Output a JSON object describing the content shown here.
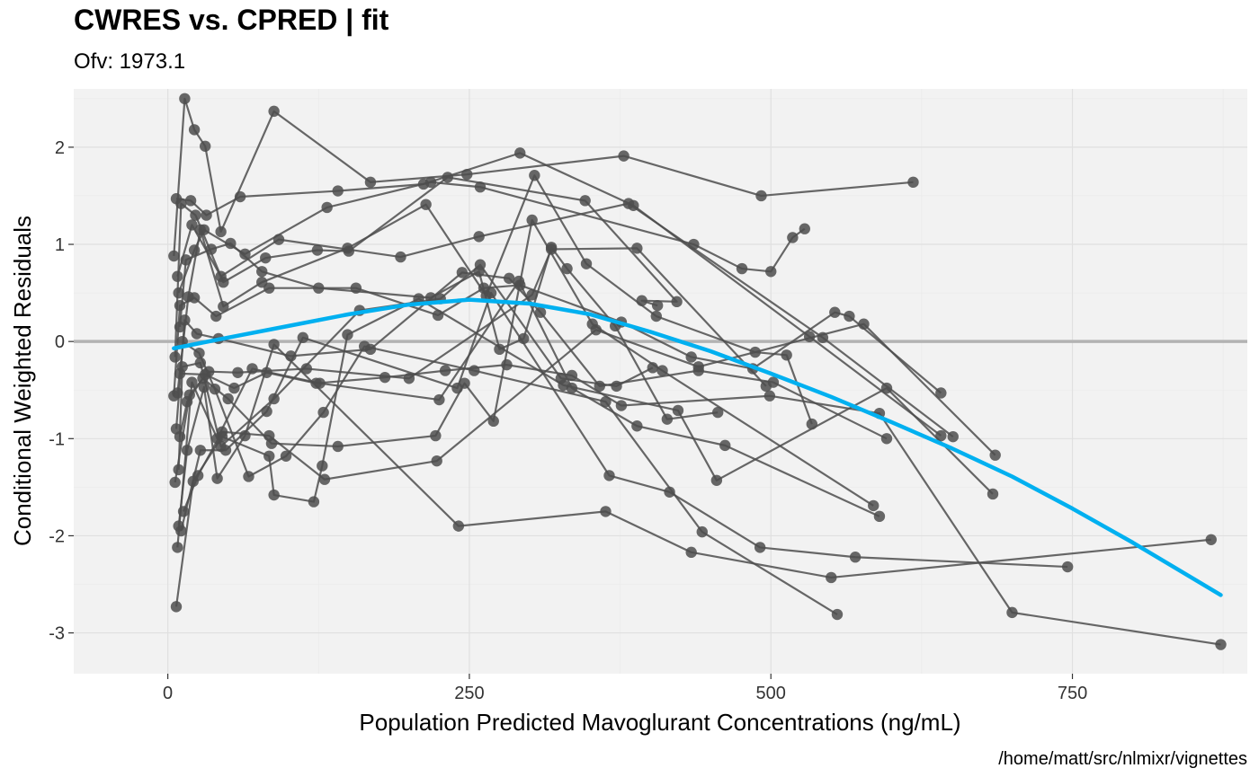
{
  "chart_data": {
    "type": "scatter",
    "title": "CWRES vs. CPRED | fit",
    "subtitle": "Ofv: 1973.1",
    "xlabel": "Population Predicted Mavoglurant Concentrations (ng/mL)",
    "ylabel": "Conditional Weighted Residuals",
    "caption": "/home/matt/src/nlmixr/vignettes",
    "xlim": [
      -78,
      895
    ],
    "ylim": [
      -3.42,
      2.6
    ],
    "xticks": [
      0,
      250,
      500,
      750
    ],
    "yticks": [
      -3,
      -2,
      -1,
      0,
      1,
      2
    ],
    "xtick_labels": [
      "0",
      "250",
      "500",
      "750"
    ],
    "ytick_labels": [
      "-3",
      "-2",
      "-1",
      "0",
      "1",
      "2"
    ],
    "grid": true,
    "legend": "none",
    "reference_line": {
      "y": 0,
      "color": "#b3b3b3"
    },
    "colors": {
      "panel_background": "#f2f2f2",
      "grid": "#e0e0e0",
      "points": "#4d4d4d",
      "lines": "#4d4d4d",
      "smooth": "#00b0f0",
      "reference": "#b3b3b3"
    },
    "individuals": [
      [
        [
          5,
          0.88
        ],
        [
          14,
          2.5
        ],
        [
          22,
          2.18
        ],
        [
          31,
          2.01
        ],
        [
          44,
          1.13
        ],
        [
          88,
          2.37
        ],
        [
          168,
          1.64
        ],
        [
          248,
          1.72
        ],
        [
          378,
          1.91
        ],
        [
          492,
          1.5
        ],
        [
          618,
          1.64
        ]
      ],
      [
        [
          7,
          1.47
        ],
        [
          19,
          1.45
        ],
        [
          32,
          1.3
        ],
        [
          60,
          1.49
        ],
        [
          141,
          1.55
        ],
        [
          212,
          1.62
        ],
        [
          292,
          1.94
        ],
        [
          386,
          1.4
        ],
        [
          532,
          0.05
        ],
        [
          641,
          -0.97
        ]
      ],
      [
        [
          8,
          0.67
        ],
        [
          20,
          1.2
        ],
        [
          44,
          0.67
        ],
        [
          92,
          1.05
        ],
        [
          193,
          0.87
        ],
        [
          258,
          1.08
        ],
        [
          382,
          1.42
        ],
        [
          543,
          0.04
        ],
        [
          651,
          -0.98
        ]
      ],
      [
        [
          9,
          0.5
        ],
        [
          22,
          0.94
        ],
        [
          30,
          1.15
        ],
        [
          64,
          0.9
        ],
        [
          132,
          1.38
        ],
        [
          218,
          1.64
        ],
        [
          259,
          1.59
        ],
        [
          436,
          1.0
        ],
        [
          476,
          0.75
        ],
        [
          500,
          0.72
        ],
        [
          518,
          1.07
        ],
        [
          528,
          1.16
        ]
      ],
      [
        [
          6,
          -0.16
        ],
        [
          11,
          1.42
        ],
        [
          23,
          1.3
        ],
        [
          46,
          0.61
        ],
        [
          81,
          0.86
        ],
        [
          124,
          0.94
        ],
        [
          150,
          0.93
        ],
        [
          232,
          1.69
        ],
        [
          346,
          1.45
        ],
        [
          422,
          0.41
        ],
        [
          393,
          0.42
        ],
        [
          406,
          0.37
        ]
      ],
      [
        [
          10,
          0.15
        ],
        [
          15,
          0.84
        ],
        [
          36,
          0.95
        ],
        [
          52,
          1.01
        ],
        [
          78,
          0.72
        ],
        [
          125,
          0.55
        ],
        [
          218,
          0.45
        ],
        [
          258,
          0.72
        ],
        [
          275,
          -0.08
        ],
        [
          295,
          0.03
        ],
        [
          318,
          0.97
        ],
        [
          331,
          0.75
        ],
        [
          371,
          0.16
        ],
        [
          414,
          -0.8
        ],
        [
          456,
          -0.73
        ]
      ],
      [
        [
          8,
          -0.53
        ],
        [
          17,
          0.46
        ],
        [
          27,
          1.15
        ],
        [
          46,
          0.36
        ],
        [
          78,
          0.61
        ],
        [
          149,
          0.96
        ],
        [
          214,
          1.41
        ],
        [
          264,
          0.47
        ],
        [
          304,
          1.71
        ],
        [
          347,
          0.8
        ],
        [
          405,
          0.26
        ],
        [
          487,
          -0.11
        ],
        [
          513,
          -0.14
        ],
        [
          534,
          -0.85
        ]
      ],
      [
        [
          5,
          -0.56
        ],
        [
          10,
          0.37
        ],
        [
          22,
          0.45
        ],
        [
          40,
          0.26
        ],
        [
          84,
          0.55
        ],
        [
          156,
          0.55
        ],
        [
          224,
          0.27
        ],
        [
          262,
          0.55
        ],
        [
          292,
          0.58
        ],
        [
          376,
          0.2
        ],
        [
          434,
          -0.16
        ],
        [
          485,
          -0.28
        ],
        [
          553,
          0.3
        ],
        [
          565,
          0.26
        ],
        [
          641,
          -0.53
        ]
      ],
      [
        [
          7,
          -0.9
        ],
        [
          14,
          0.22
        ],
        [
          24,
          0.08
        ],
        [
          42,
          0.03
        ],
        [
          102,
          -0.15
        ],
        [
          168,
          -0.08
        ],
        [
          244,
          0.71
        ],
        [
          283,
          0.65
        ],
        [
          309,
          0.3
        ],
        [
          358,
          -0.46
        ],
        [
          440,
          -0.3
        ],
        [
          502,
          -0.42
        ],
        [
          596,
          -1.0
        ]
      ],
      [
        [
          9,
          -1.32
        ],
        [
          12,
          -0.26
        ],
        [
          27,
          -0.22
        ],
        [
          44,
          -1.08
        ],
        [
          88,
          -0.59
        ],
        [
          159,
          0.32
        ],
        [
          226,
          0.44
        ],
        [
          259,
          0.79
        ],
        [
          326,
          -0.38
        ],
        [
          372,
          -0.46
        ],
        [
          402,
          -0.27
        ]
      ],
      [
        [
          6,
          -1.45
        ],
        [
          18,
          -0.55
        ],
        [
          34,
          -0.31
        ],
        [
          58,
          -0.32
        ],
        [
          115,
          -0.28
        ],
        [
          200,
          -0.38
        ],
        [
          302,
          0.48
        ],
        [
          318,
          0.95
        ],
        [
          389,
          0.96
        ],
        [
          496,
          -0.46
        ]
      ],
      [
        [
          10,
          -0.98
        ],
        [
          16,
          -0.62
        ],
        [
          29,
          -0.38
        ],
        [
          50,
          -0.59
        ],
        [
          86,
          -1.05
        ],
        [
          141,
          -1.08
        ],
        [
          222,
          -0.97
        ],
        [
          246,
          -0.43
        ],
        [
          270,
          -0.82
        ],
        [
          302,
          1.25
        ],
        [
          352,
          0.18
        ],
        [
          410,
          -0.3
        ],
        [
          585,
          -1.69
        ]
      ],
      [
        [
          8,
          -2.12
        ],
        [
          20,
          -0.42
        ],
        [
          41,
          -1.0
        ],
        [
          70,
          -0.28
        ],
        [
          126,
          -0.43
        ],
        [
          225,
          -0.6
        ],
        [
          291,
          0.62
        ],
        [
          335,
          -0.48
        ],
        [
          389,
          -0.87
        ],
        [
          462,
          -1.07
        ],
        [
          590,
          -1.8
        ]
      ],
      [
        [
          13,
          -1.75
        ],
        [
          25,
          -1.38
        ],
        [
          45,
          -0.93
        ],
        [
          84,
          -0.97
        ],
        [
          130,
          -1.42
        ],
        [
          223,
          -1.23
        ],
        [
          355,
          0.12
        ],
        [
          440,
          -0.26
        ],
        [
          577,
          0.18
        ],
        [
          686,
          -1.17
        ]
      ],
      [
        [
          7,
          -2.73
        ],
        [
          21,
          -1.44
        ],
        [
          45,
          -0.98
        ],
        [
          84,
          -1.18
        ],
        [
          88,
          -1.58
        ],
        [
          121,
          -1.65
        ],
        [
          128,
          -1.28
        ],
        [
          149,
          0.07
        ],
        [
          208,
          0.44
        ],
        [
          328,
          -0.45
        ],
        [
          423,
          -0.71
        ],
        [
          455,
          -1.43
        ],
        [
          596,
          -0.48
        ],
        [
          684,
          -1.57
        ]
      ],
      [
        [
          11,
          -1.95
        ],
        [
          27,
          -1.12
        ],
        [
          48,
          -1.12
        ],
        [
          82,
          -0.72
        ],
        [
          112,
          0.04
        ],
        [
          240,
          -0.48
        ],
        [
          268,
          0.5
        ],
        [
          366,
          -1.38
        ],
        [
          416,
          -1.55
        ],
        [
          491,
          -2.12
        ],
        [
          570,
          -2.22
        ],
        [
          746,
          -2.32
        ]
      ],
      [
        [
          9,
          -1.9
        ],
        [
          16,
          -1.12
        ],
        [
          30,
          -0.47
        ],
        [
          41,
          -1.41
        ],
        [
          64,
          -0.97
        ],
        [
          88,
          -0.03
        ],
        [
          241,
          -1.9
        ],
        [
          363,
          -1.75
        ],
        [
          434,
          -2.17
        ],
        [
          550,
          -2.43
        ],
        [
          865,
          -2.04
        ]
      ],
      [
        [
          12,
          0.0
        ],
        [
          26,
          -0.12
        ],
        [
          39,
          -0.49
        ],
        [
          67,
          -1.39
        ],
        [
          98,
          -1.18
        ],
        [
          129,
          -0.73
        ],
        [
          163,
          -0.05
        ],
        [
          254,
          -0.3
        ],
        [
          363,
          -0.62
        ],
        [
          443,
          -1.96
        ],
        [
          555,
          -2.81
        ]
      ],
      [
        [
          10,
          -0.33
        ],
        [
          31,
          -0.34
        ],
        [
          55,
          -0.48
        ],
        [
          82,
          -0.32
        ],
        [
          123,
          -0.43
        ],
        [
          180,
          -0.37
        ],
        [
          230,
          -0.3
        ],
        [
          281,
          -0.24
        ],
        [
          335,
          -0.35
        ],
        [
          376,
          -0.66
        ],
        [
          499,
          -0.56
        ],
        [
          590,
          -0.74
        ],
        [
          700,
          -2.79
        ],
        [
          873,
          -3.12
        ]
      ]
    ],
    "smooth": [
      [
        5,
        -0.07
      ],
      [
        50,
        0.04
      ],
      [
        100,
        0.16
      ],
      [
        150,
        0.28
      ],
      [
        200,
        0.38
      ],
      [
        250,
        0.43
      ],
      [
        300,
        0.39
      ],
      [
        350,
        0.28
      ],
      [
        400,
        0.1
      ],
      [
        450,
        -0.1
      ],
      [
        500,
        -0.33
      ],
      [
        550,
        -0.57
      ],
      [
        600,
        -0.83
      ],
      [
        650,
        -1.1
      ],
      [
        700,
        -1.39
      ],
      [
        750,
        -1.72
      ],
      [
        800,
        -2.07
      ],
      [
        873,
        -2.61
      ]
    ]
  }
}
